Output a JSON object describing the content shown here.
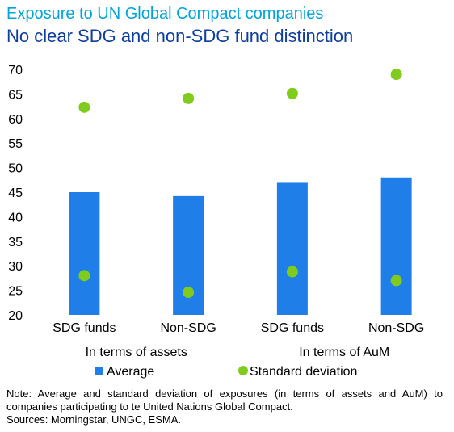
{
  "header": {
    "title": "Exposure to UN Global Compact companies",
    "subtitle": "No clear SDG and non-SDG fund distinction"
  },
  "footer": {
    "note": "Note: Average and standard deviation of exposures (in terms of assets and AuM) to companies participating to te United Nations Global Compact.",
    "sources": "Sources: Morningstar, UNGC, ESMA."
  },
  "chart_data": {
    "type": "bar",
    "categories": [
      "SDG funds",
      "Non-SDG",
      "SDG funds",
      "Non-SDG"
    ],
    "groups": [
      {
        "label": "In terms of assets",
        "categories": [
          0,
          1
        ]
      },
      {
        "label": "In terms of AuM",
        "categories": [
          2,
          3
        ]
      }
    ],
    "series": [
      {
        "name": "Average",
        "kind": "bar",
        "color": "#1f7ee8",
        "values": [
          45,
          44.2,
          46.9,
          48
        ]
      },
      {
        "name": "Standard deviation",
        "kind": "point",
        "color": "#7fcc1c",
        "values": [
          28,
          24.6,
          28.8,
          27
        ]
      },
      {
        "name": "Standard deviation",
        "kind": "point",
        "color": "#7fcc1c",
        "values": [
          62.3,
          64.1,
          65.1,
          69
        ]
      }
    ],
    "legend": [
      {
        "label": "Average",
        "symbol": "square",
        "color": "#1f7ee8"
      },
      {
        "label": "Standard deviation",
        "symbol": "circle",
        "color": "#7fcc1c"
      }
    ],
    "ylim": [
      20,
      70
    ],
    "yticks": [
      20,
      25,
      30,
      35,
      40,
      45,
      50,
      55,
      60,
      65,
      70
    ],
    "grid": false,
    "legend_position": "bottom",
    "colors": {
      "title": "#00a5d8",
      "subtitle": "#0f3e9e"
    }
  }
}
